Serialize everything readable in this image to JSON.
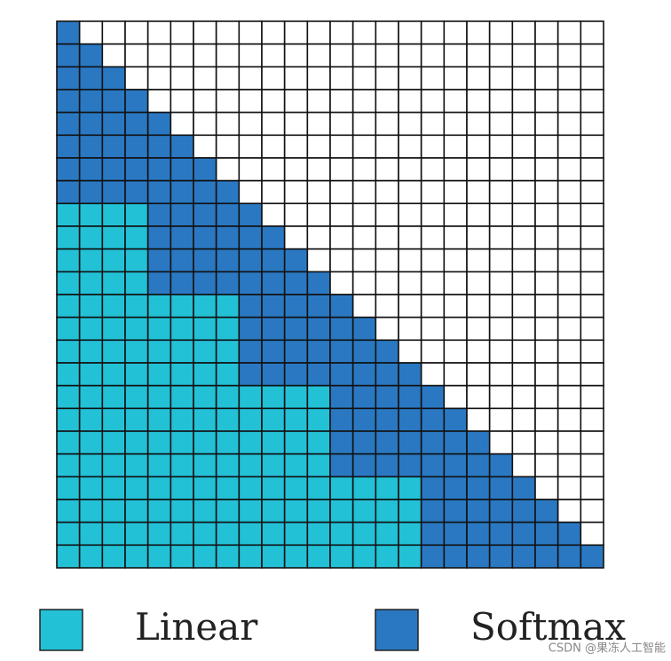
{
  "legend": {
    "items": [
      {
        "label": "Linear"
      },
      {
        "label": "Softmax"
      }
    ]
  },
  "watermark": "CSDN @果冻人工智能"
}
